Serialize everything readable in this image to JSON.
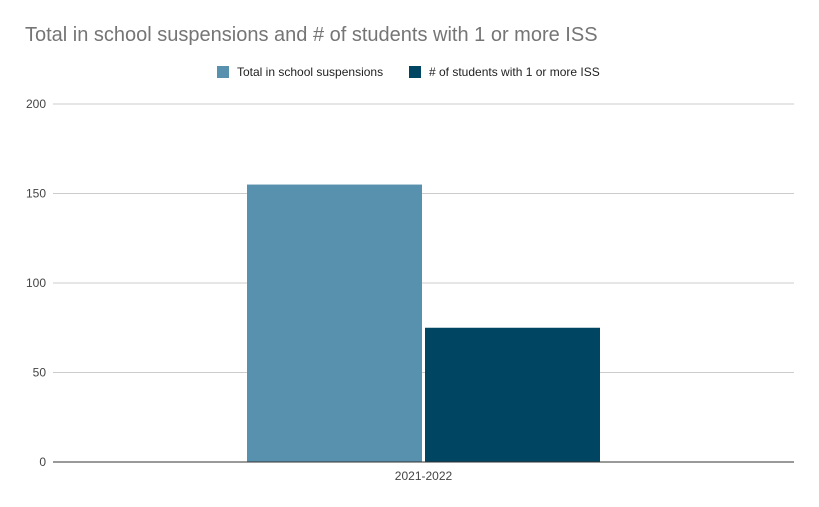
{
  "chart_data": {
    "type": "bar",
    "title": "Total in school suspensions and # of students with 1 or more ISS",
    "categories": [
      "2021-2022"
    ],
    "series": [
      {
        "name": "Total in school suspensions",
        "values": [
          155
        ],
        "color": "#5891ad"
      },
      {
        "name": "# of students with 1 or more ISS",
        "values": [
          75
        ],
        "color": "#004561"
      }
    ],
    "xlabel": "",
    "ylabel": "",
    "ylim": [
      0,
      200
    ],
    "yticks": [
      0,
      50,
      100,
      150,
      200
    ],
    "grid": true,
    "legend_position": "top"
  }
}
